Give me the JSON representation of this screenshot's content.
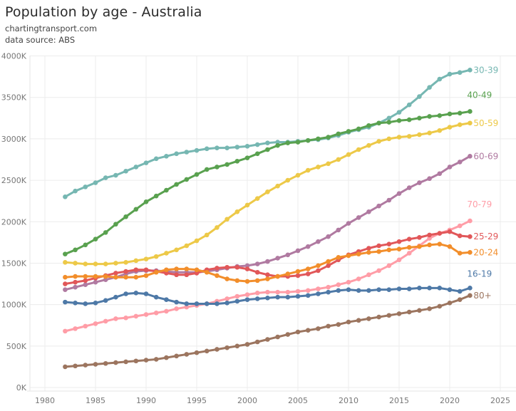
{
  "header": {
    "title": "Population by age - Australia",
    "source_site": "chartingtransport.com",
    "data_source": "data source: ABS"
  },
  "chart_data": {
    "type": "line",
    "title": "Population by age - Australia",
    "xlabel": "",
    "ylabel": "",
    "xlim": [
      1978.9,
      2025.5
    ],
    "ylim": [
      0,
      4000
    ],
    "y_unit": "K",
    "grid": true,
    "legend": "inline labels at line ends (right)",
    "x_ticks": [
      "1980",
      "1985",
      "1990",
      "1995",
      "2000",
      "2005",
      "2010",
      "2015",
      "2020",
      "2025"
    ],
    "y_ticks": [
      "0K",
      "500K",
      "1000K",
      "1500K",
      "2000K",
      "2500K",
      "3000K",
      "3500K",
      "4000K"
    ],
    "x": [
      1982,
      1983,
      1984,
      1985,
      1986,
      1987,
      1988,
      1989,
      1990,
      1991,
      1992,
      1993,
      1994,
      1995,
      1996,
      1997,
      1998,
      1999,
      2000,
      2001,
      2002,
      2003,
      2004,
      2005,
      2006,
      2007,
      2008,
      2009,
      2010,
      2011,
      2012,
      2013,
      2014,
      2015,
      2016,
      2017,
      2018,
      2019,
      2020,
      2021,
      2022
    ],
    "series": [
      {
        "name": "30-39",
        "color": "#76b7b2",
        "values": [
          2300,
          2370,
          2420,
          2470,
          2530,
          2560,
          2610,
          2660,
          2710,
          2760,
          2790,
          2820,
          2840,
          2860,
          2880,
          2890,
          2890,
          2900,
          2910,
          2930,
          2950,
          2960,
          2960,
          2970,
          2980,
          2990,
          3010,
          3040,
          3080,
          3110,
          3140,
          3190,
          3250,
          3320,
          3410,
          3510,
          3620,
          3720,
          3780,
          3800,
          3830
        ]
      },
      {
        "name": "40-49",
        "color": "#59a14f",
        "values": [
          1610,
          1660,
          1720,
          1790,
          1870,
          1970,
          2060,
          2150,
          2240,
          2310,
          2380,
          2450,
          2510,
          2570,
          2630,
          2660,
          2690,
          2730,
          2770,
          2820,
          2870,
          2920,
          2950,
          2960,
          2980,
          3000,
          3020,
          3060,
          3090,
          3120,
          3160,
          3190,
          3200,
          3220,
          3230,
          3250,
          3270,
          3280,
          3300,
          3310,
          3330
        ]
      },
      {
        "name": "50-59",
        "color": "#edc948",
        "values": [
          1510,
          1500,
          1490,
          1490,
          1490,
          1500,
          1510,
          1530,
          1550,
          1580,
          1620,
          1660,
          1710,
          1770,
          1840,
          1930,
          2030,
          2120,
          2200,
          2280,
          2360,
          2430,
          2500,
          2560,
          2620,
          2660,
          2700,
          2750,
          2810,
          2870,
          2920,
          2970,
          3000,
          3020,
          3030,
          3050,
          3070,
          3100,
          3140,
          3170,
          3190
        ]
      },
      {
        "name": "60-69",
        "color": "#b07aa1",
        "values": [
          1180,
          1210,
          1240,
          1270,
          1300,
          1330,
          1370,
          1400,
          1410,
          1410,
          1400,
          1390,
          1390,
          1390,
          1400,
          1420,
          1440,
          1460,
          1470,
          1490,
          1520,
          1560,
          1600,
          1650,
          1700,
          1760,
          1820,
          1900,
          1980,
          2050,
          2120,
          2190,
          2260,
          2340,
          2410,
          2470,
          2520,
          2580,
          2660,
          2720,
          2790
        ]
      },
      {
        "name": "70-79",
        "color": "#ff9da7",
        "values": [
          680,
          710,
          740,
          770,
          800,
          830,
          840,
          860,
          880,
          900,
          920,
          950,
          970,
          990,
          1010,
          1040,
          1070,
          1100,
          1120,
          1140,
          1150,
          1150,
          1150,
          1160,
          1170,
          1190,
          1210,
          1240,
          1270,
          1310,
          1360,
          1410,
          1470,
          1540,
          1620,
          1710,
          1800,
          1860,
          1900,
          1950,
          2010
        ]
      },
      {
        "name": "25-29",
        "color": "#e15759",
        "values": [
          1250,
          1270,
          1290,
          1320,
          1350,
          1380,
          1400,
          1420,
          1420,
          1400,
          1380,
          1360,
          1360,
          1380,
          1420,
          1440,
          1450,
          1450,
          1430,
          1390,
          1360,
          1340,
          1340,
          1350,
          1370,
          1410,
          1470,
          1540,
          1600,
          1640,
          1680,
          1710,
          1730,
          1760,
          1790,
          1810,
          1840,
          1860,
          1880,
          1830,
          1820
        ]
      },
      {
        "name": "20-24",
        "color": "#f28e2b",
        "values": [
          1330,
          1340,
          1340,
          1340,
          1340,
          1330,
          1330,
          1330,
          1350,
          1390,
          1420,
          1430,
          1430,
          1420,
          1390,
          1350,
          1310,
          1290,
          1280,
          1290,
          1310,
          1340,
          1370,
          1400,
          1430,
          1470,
          1520,
          1570,
          1590,
          1610,
          1630,
          1640,
          1660,
          1670,
          1690,
          1700,
          1720,
          1730,
          1700,
          1620,
          1630
        ]
      },
      {
        "name": "16-19",
        "color": "#4e79a7",
        "values": [
          1030,
          1020,
          1010,
          1020,
          1050,
          1090,
          1130,
          1140,
          1130,
          1090,
          1060,
          1030,
          1010,
          1010,
          1010,
          1010,
          1020,
          1040,
          1060,
          1070,
          1080,
          1090,
          1090,
          1100,
          1110,
          1130,
          1150,
          1170,
          1180,
          1170,
          1170,
          1180,
          1180,
          1190,
          1190,
          1200,
          1200,
          1200,
          1180,
          1160,
          1200
        ]
      },
      {
        "name": "80+",
        "color": "#9c755f",
        "values": [
          250,
          260,
          270,
          280,
          290,
          300,
          310,
          320,
          330,
          340,
          360,
          380,
          400,
          420,
          440,
          460,
          480,
          500,
          520,
          550,
          580,
          610,
          640,
          670,
          690,
          710,
          740,
          760,
          790,
          810,
          830,
          850,
          870,
          890,
          910,
          930,
          950,
          980,
          1020,
          1060,
          1110
        ]
      }
    ]
  }
}
